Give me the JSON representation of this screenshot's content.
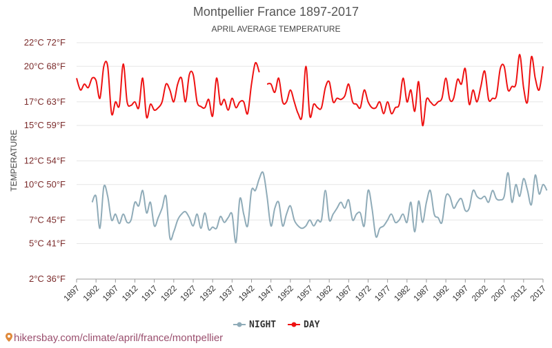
{
  "chart_data": {
    "type": "line",
    "title": "Montpellier France 1897-2017",
    "subtitle": "APRIL AVERAGE TEMPERATURE",
    "ylabel": "TEMPERATURE",
    "ylim": [
      2,
      22
    ],
    "xlim": [
      1897,
      2017
    ],
    "y_ticks": [
      {
        "value": 2,
        "label": "2°C 36°F"
      },
      {
        "value": 5,
        "label": "5°C 41°F"
      },
      {
        "value": 7,
        "label": "7°C 45°F"
      },
      {
        "value": 10,
        "label": "10°C 50°F"
      },
      {
        "value": 12,
        "label": "12°C 54°F"
      },
      {
        "value": 15,
        "label": "15°C 59°F"
      },
      {
        "value": 17,
        "label": "17°C 63°F"
      },
      {
        "value": 20,
        "label": "20°C 68°F"
      },
      {
        "value": 22,
        "label": "22°C 72°F"
      }
    ],
    "x_ticks": [
      1897,
      1902,
      1907,
      1912,
      1917,
      1922,
      1927,
      1932,
      1937,
      1942,
      1947,
      1952,
      1957,
      1962,
      1967,
      1972,
      1977,
      1982,
      1987,
      1992,
      1997,
      2002,
      2007,
      2012,
      2017
    ],
    "grid": true,
    "legend_position": "bottom-center",
    "series": [
      {
        "name": "NIGHT",
        "color": "#8fabb8",
        "points": [
          [
            1901,
            8.5
          ],
          [
            1902,
            9
          ],
          [
            1903,
            6.3
          ],
          [
            1904,
            9.8
          ],
          [
            1905,
            9
          ],
          [
            1906,
            7
          ],
          [
            1907,
            7.5
          ],
          [
            1908,
            6.7
          ],
          [
            1909,
            7.5
          ],
          [
            1910,
            6.8
          ],
          [
            1911,
            7
          ],
          [
            1912,
            8.5
          ],
          [
            1913,
            8.2
          ],
          [
            1914,
            9.5
          ],
          [
            1915,
            7.6
          ],
          [
            1916,
            8.5
          ],
          [
            1917,
            6.5
          ],
          [
            1918,
            7.2
          ],
          [
            1919,
            8
          ],
          [
            1920,
            9
          ],
          [
            1921,
            5.5
          ],
          [
            1922,
            6
          ],
          [
            1923,
            7
          ],
          [
            1924,
            7.5
          ],
          [
            1925,
            7.7
          ],
          [
            1926,
            7.2
          ],
          [
            1927,
            6.5
          ],
          [
            1928,
            7.5
          ],
          [
            1929,
            6.3
          ],
          [
            1930,
            7.6
          ],
          [
            1931,
            6.2
          ],
          [
            1932,
            6.4
          ],
          [
            1933,
            6.3
          ],
          [
            1934,
            7.3
          ],
          [
            1935,
            6.8
          ],
          [
            1936,
            7.2
          ],
          [
            1937,
            7.5
          ],
          [
            1938,
            5.1
          ],
          [
            1939,
            8.8
          ],
          [
            1940,
            7.5
          ],
          [
            1941,
            6.5
          ],
          [
            1942,
            9.5
          ],
          [
            1943,
            9.5
          ],
          [
            1944,
            10.5
          ],
          [
            1945,
            11
          ],
          [
            1946,
            9
          ],
          [
            1947,
            6.5
          ],
          [
            1948,
            8
          ],
          [
            1949,
            8.5
          ],
          [
            1950,
            6.5
          ],
          [
            1951,
            7.5
          ],
          [
            1952,
            8.2
          ],
          [
            1953,
            7
          ],
          [
            1954,
            6.5
          ],
          [
            1955,
            6.3
          ],
          [
            1956,
            6.5
          ],
          [
            1957,
            7
          ],
          [
            1958,
            6.5
          ],
          [
            1959,
            7
          ],
          [
            1960,
            7
          ],
          [
            1961,
            9.5
          ],
          [
            1962,
            7
          ],
          [
            1963,
            7.5
          ],
          [
            1964,
            8
          ],
          [
            1965,
            8.5
          ],
          [
            1966,
            8
          ],
          [
            1967,
            8.7
          ],
          [
            1968,
            7
          ],
          [
            1969,
            7.5
          ],
          [
            1970,
            7.6
          ],
          [
            1971,
            6.5
          ],
          [
            1972,
            9.5
          ],
          [
            1973,
            8
          ],
          [
            1974,
            5.6
          ],
          [
            1975,
            6.3
          ],
          [
            1976,
            6.5
          ],
          [
            1977,
            7
          ],
          [
            1978,
            7.5
          ],
          [
            1979,
            6.8
          ],
          [
            1980,
            7
          ],
          [
            1981,
            7.5
          ],
          [
            1982,
            6.8
          ],
          [
            1983,
            8.5
          ],
          [
            1984,
            6
          ],
          [
            1985,
            8.6
          ],
          [
            1986,
            6.8
          ],
          [
            1987,
            8.5
          ],
          [
            1988,
            9.5
          ],
          [
            1989,
            7.5
          ],
          [
            1990,
            7.2
          ],
          [
            1991,
            6.8
          ],
          [
            1992,
            9
          ],
          [
            1993,
            9
          ],
          [
            1994,
            8
          ],
          [
            1995,
            8.5
          ],
          [
            1996,
            8.8
          ],
          [
            1997,
            7.8
          ],
          [
            1998,
            8
          ],
          [
            1999,
            9.5
          ],
          [
            2000,
            9
          ],
          [
            2001,
            8.8
          ],
          [
            2002,
            9
          ],
          [
            2003,
            8.5
          ],
          [
            2004,
            9.5
          ],
          [
            2005,
            8.8
          ],
          [
            2006,
            8.7
          ],
          [
            2007,
            9
          ],
          [
            2008,
            11
          ],
          [
            2009,
            8.5
          ],
          [
            2010,
            10
          ],
          [
            2011,
            9
          ],
          [
            2012,
            10.5
          ],
          [
            2013,
            9.5
          ],
          [
            2014,
            8.3
          ],
          [
            2015,
            10.8
          ],
          [
            2016,
            9.2
          ],
          [
            2017,
            10
          ],
          [
            2018,
            9.5
          ]
        ]
      },
      {
        "name": "DAY",
        "color": "#ee1111",
        "points": [
          [
            1897,
            19
          ],
          [
            1898,
            18
          ],
          [
            1899,
            18.5
          ],
          [
            1900,
            18.2
          ],
          [
            1901,
            19
          ],
          [
            1902,
            18.8
          ],
          [
            1903,
            17.3
          ],
          [
            1904,
            20
          ],
          [
            1905,
            20
          ],
          [
            1906,
            16
          ],
          [
            1907,
            17
          ],
          [
            1908,
            16.7
          ],
          [
            1909,
            20.2
          ],
          [
            1910,
            17
          ],
          [
            1911,
            16.7
          ],
          [
            1912,
            17
          ],
          [
            1913,
            16.5
          ],
          [
            1914,
            19
          ],
          [
            1915,
            15.7
          ],
          [
            1916,
            16.8
          ],
          [
            1917,
            16.3
          ],
          [
            1918,
            16.5
          ],
          [
            1919,
            17
          ],
          [
            1920,
            18.5
          ],
          [
            1921,
            18
          ],
          [
            1922,
            17
          ],
          [
            1923,
            18.5
          ],
          [
            1924,
            19
          ],
          [
            1925,
            17
          ],
          [
            1926,
            19.3
          ],
          [
            1927,
            19.3
          ],
          [
            1928,
            17
          ],
          [
            1929,
            16.6
          ],
          [
            1930,
            16.5
          ],
          [
            1931,
            17.2
          ],
          [
            1932,
            15.8
          ],
          [
            1933,
            19
          ],
          [
            1934,
            16.8
          ],
          [
            1935,
            17.2
          ],
          [
            1936,
            16.3
          ],
          [
            1937,
            17.3
          ],
          [
            1938,
            16.5
          ],
          [
            1939,
            17
          ],
          [
            1940,
            17
          ],
          [
            1941,
            16
          ],
          [
            1942,
            18.5
          ],
          [
            1943,
            20.3
          ],
          [
            1944,
            19.5
          ],
          [
            1946,
            18.5
          ],
          [
            1947,
            18.5
          ],
          [
            1948,
            17.8
          ],
          [
            1949,
            19
          ],
          [
            1950,
            17
          ],
          [
            1951,
            17
          ],
          [
            1952,
            18
          ],
          [
            1953,
            17
          ],
          [
            1954,
            16
          ],
          [
            1955,
            15.8
          ],
          [
            1956,
            20
          ],
          [
            1957,
            15.8
          ],
          [
            1958,
            16.8
          ],
          [
            1959,
            16.5
          ],
          [
            1960,
            16.5
          ],
          [
            1961,
            18.2
          ],
          [
            1962,
            18.7
          ],
          [
            1963,
            17
          ],
          [
            1964,
            17.3
          ],
          [
            1965,
            17.2
          ],
          [
            1966,
            17.5
          ],
          [
            1967,
            18.5
          ],
          [
            1968,
            17
          ],
          [
            1969,
            16.8
          ],
          [
            1970,
            16.5
          ],
          [
            1971,
            18
          ],
          [
            1972,
            17
          ],
          [
            1973,
            16.5
          ],
          [
            1974,
            16.5
          ],
          [
            1975,
            17
          ],
          [
            1976,
            16
          ],
          [
            1977,
            17
          ],
          [
            1978,
            16
          ],
          [
            1979,
            16.5
          ],
          [
            1980,
            16.8
          ],
          [
            1981,
            19
          ],
          [
            1982,
            17
          ],
          [
            1983,
            18
          ],
          [
            1984,
            16.2
          ],
          [
            1985,
            18.7
          ],
          [
            1986,
            15
          ],
          [
            1987,
            17.2
          ],
          [
            1988,
            17
          ],
          [
            1989,
            16.7
          ],
          [
            1990,
            17
          ],
          [
            1991,
            17.3
          ],
          [
            1992,
            19
          ],
          [
            1993,
            17.2
          ],
          [
            1994,
            17.3
          ],
          [
            1995,
            18.9
          ],
          [
            1996,
            18.5
          ],
          [
            1997,
            19.8
          ],
          [
            1998,
            16.8
          ],
          [
            1999,
            18
          ],
          [
            2000,
            17
          ],
          [
            2001,
            18.3
          ],
          [
            2002,
            19.6
          ],
          [
            2003,
            17.2
          ],
          [
            2004,
            17.3
          ],
          [
            2005,
            17.5
          ],
          [
            2006,
            19.8
          ],
          [
            2007,
            20
          ],
          [
            2008,
            18
          ],
          [
            2009,
            18.3
          ],
          [
            2010,
            18.5
          ],
          [
            2011,
            21
          ],
          [
            2012,
            18.2
          ],
          [
            2013,
            17
          ],
          [
            2014,
            20.8
          ],
          [
            2015,
            19
          ],
          [
            2016,
            18
          ],
          [
            2017,
            20
          ]
        ]
      }
    ]
  },
  "watermark": {
    "text": "hikersbay.com/climate/april/france/montpellier",
    "icon": "location-pin-icon",
    "color": "#9a4f6e"
  }
}
